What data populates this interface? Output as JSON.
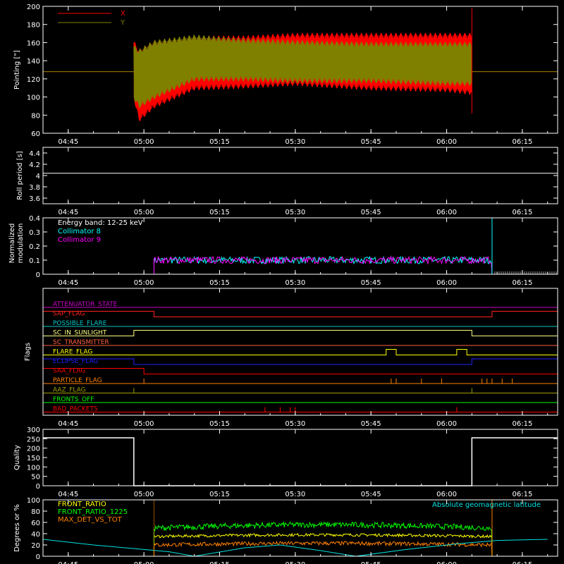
{
  "time_axis": {
    "ticks": [
      "04:45",
      "05:00",
      "05:15",
      "05:30",
      "05:45",
      "06:00",
      "06:15"
    ]
  },
  "chart_data": [
    {
      "type": "line",
      "id": "pointing",
      "ylabel": "Pointing [\"]",
      "ylim": [
        60,
        200
      ],
      "yticks": [
        60,
        80,
        100,
        120,
        140,
        160,
        180,
        200
      ],
      "legend": [
        {
          "name": "X",
          "color": "#ff0000"
        },
        {
          "name": "Y",
          "color": "#808000"
        }
      ],
      "series": [
        {
          "name": "X",
          "color": "#ff0000",
          "baseline": 128,
          "envelope": {
            "t": [
              "04:58",
              "04:59",
              "05:02",
              "05:10",
              "05:20",
              "05:30",
              "05:45",
              "06:00",
              "06:05"
            ],
            "upper": [
              160,
              150,
              160,
              165,
              165,
              168,
              168,
              168,
              168
            ],
            "lower": [
              100,
              75,
              90,
              110,
              112,
              115,
              110,
              108,
              105
            ]
          }
        },
        {
          "name": "Y",
          "color": "#808000",
          "baseline": 128,
          "envelope": {
            "t": [
              "04:58",
              "04:59",
              "05:02",
              "05:10",
              "05:20",
              "05:30",
              "05:45",
              "06:00",
              "06:05"
            ],
            "upper": [
              155,
              150,
              160,
              166,
              162,
              160,
              158,
              158,
              158
            ],
            "lower": [
              100,
              90,
              100,
              120,
              120,
              118,
              118,
              115,
              115
            ]
          }
        }
      ]
    },
    {
      "type": "line",
      "id": "roll-period",
      "ylabel": "Roll period [s]",
      "ylim": [
        3.5,
        4.5
      ],
      "yticks": [
        3.6,
        3.8,
        4.0,
        4.2,
        4.4
      ],
      "series": [
        {
          "name": "roll",
          "color": "#ffffff",
          "value": 4.04
        }
      ]
    },
    {
      "type": "line",
      "id": "modulation",
      "ylabel": "Normalized modulation",
      "ylim": [
        0,
        0.4
      ],
      "yticks": [
        0,
        0.1,
        0.2,
        0.3,
        0.4
      ],
      "annotation": "Energy band: 12-25 keV",
      "legend": [
        {
          "name": "Collimator 8",
          "color": "#00ffff"
        },
        {
          "name": "Collimator 9",
          "color": "#ff00ff"
        }
      ],
      "series": [
        {
          "name": "Collimator 8",
          "color": "#00ffff",
          "start": "05:02",
          "end": "06:09",
          "mean": 0.1
        },
        {
          "name": "Collimator 9",
          "color": "#ff00ff",
          "start": "05:02",
          "end": "06:09",
          "mean": 0.1
        }
      ]
    },
    {
      "type": "line",
      "id": "flags",
      "ylabel": "Flags",
      "rows": [
        {
          "label": "ATTENUATOR_STATE",
          "color": "#cc00cc",
          "high": []
        },
        {
          "label": "SAP_FLAG",
          "color": "#ff2020",
          "high": [
            [
              "04:40",
              "05:02"
            ],
            [
              "06:09",
              "06:22"
            ]
          ]
        },
        {
          "label": "POSSIBLE_FLARE",
          "color": "#00c8c8",
          "high": []
        },
        {
          "label": "SC_IN_SUNLIGHT",
          "color": "#ffff80",
          "high": [
            [
              "04:58",
              "06:05"
            ]
          ]
        },
        {
          "label": "SC_TRANSMITTER",
          "color": "#ff6040",
          "high": []
        },
        {
          "label": "FLARE_FLAG",
          "color": "#ffff00",
          "high": [
            [
              "05:48",
              "05:50"
            ],
            [
              "06:02",
              "06:04"
            ]
          ]
        },
        {
          "label": "ECLIPSE_FLAG",
          "color": "#2020ff",
          "high": [
            [
              "04:40",
              "04:58"
            ],
            [
              "06:05",
              "06:22"
            ]
          ]
        },
        {
          "label": "SAA_FLAG",
          "color": "#ff0000",
          "high": [
            [
              "04:40",
              "05:00"
            ]
          ]
        },
        {
          "label": "PARTICLE_FLAG",
          "color": "#ff8000",
          "spikes": [
            "05:00",
            "05:49",
            "05:50",
            "05:55",
            "05:59",
            "06:07",
            "06:08",
            "06:09",
            "06:11",
            "06:13"
          ]
        },
        {
          "label": "AAZ_FLAG",
          "color": "#a0a000",
          "spikes": [
            "04:58",
            "06:05"
          ]
        },
        {
          "label": "FRONTS_OFF",
          "color": "#00ff00",
          "high": []
        },
        {
          "label": "BAD_PACKETS",
          "color": "#ff0000",
          "spikes": [
            "05:24",
            "05:27",
            "05:29",
            "05:30",
            "06:02"
          ]
        }
      ]
    },
    {
      "type": "line",
      "id": "quality",
      "ylabel": "Quality",
      "ylim": [
        0,
        300
      ],
      "yticks": [
        0,
        50,
        100,
        150,
        200,
        250,
        300
      ],
      "series": [
        {
          "name": "quality",
          "color": "#ffffff",
          "points": [
            [
              "04:40",
              255
            ],
            [
              "04:58",
              255
            ],
            [
              "04:58",
              0
            ],
            [
              "06:05",
              0
            ],
            [
              "06:05",
              255
            ],
            [
              "06:22",
              255
            ]
          ]
        }
      ]
    },
    {
      "type": "line",
      "id": "ratios",
      "ylabel": "Degrees or %",
      "ylim": [
        0,
        100
      ],
      "yticks": [
        0,
        20,
        40,
        60,
        80,
        100
      ],
      "legend": [
        {
          "name": "FRONT_RATIO",
          "color": "#ffff00"
        },
        {
          "name": "FRONT_RATIO_1225",
          "color": "#00ff00"
        },
        {
          "name": "MAX_DET_VS_TOT",
          "color": "#ff8000"
        }
      ],
      "right_label": {
        "text": "Absolute geomagnetic latitude",
        "color": "#00e0e0"
      },
      "series": [
        {
          "name": "FRONT_RATIO",
          "color": "#ffff00",
          "start": "05:02",
          "end": "06:09",
          "mean": 35
        },
        {
          "name": "FRONT_RATIO_1225",
          "color": "#00ff00",
          "start": "05:02",
          "end": "06:09",
          "mean": 50
        },
        {
          "name": "MAX_DET_VS_TOT",
          "color": "#ff8000",
          "start": "05:02",
          "end": "06:09",
          "mean": 20
        },
        {
          "name": "Absolute geomagnetic latitude",
          "color": "#00e0e0",
          "points": [
            [
              "04:40",
              30
            ],
            [
              "04:50",
              20
            ],
            [
              "05:05",
              8
            ],
            [
              "05:10",
              0
            ],
            [
              "05:20",
              15
            ],
            [
              "05:27",
              20
            ],
            [
              "05:35",
              10
            ],
            [
              "05:42",
              0
            ],
            [
              "05:52",
              12
            ],
            [
              "06:02",
              22
            ],
            [
              "06:10",
              28
            ],
            [
              "06:20",
              30
            ]
          ]
        }
      ]
    }
  ]
}
